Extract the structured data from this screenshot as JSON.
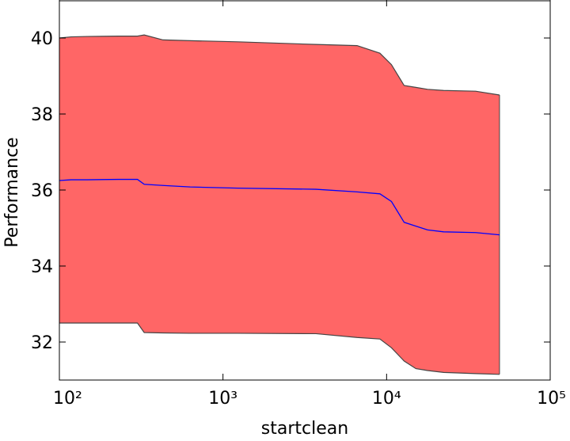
{
  "chart_data": {
    "type": "band-line",
    "xlabel": "startclean",
    "ylabel": "Performance",
    "xscale": "log",
    "x": [
      100,
      118,
      148,
      230,
      300,
      330,
      430,
      630,
      1230,
      3700,
      6600,
      9100,
      10700,
      12800,
      15100,
      17800,
      22300,
      35000,
      49000
    ],
    "line": {
      "color": "#0000ff",
      "values": [
        36.25,
        36.27,
        36.27,
        36.28,
        36.28,
        36.15,
        36.12,
        36.08,
        36.05,
        36.02,
        35.95,
        35.9,
        35.7,
        35.15,
        35.05,
        34.95,
        34.9,
        34.88,
        34.82
      ]
    },
    "band": {
      "color": "#ff6666",
      "edge_color": "#444444",
      "upper": [
        40.0,
        40.03,
        40.04,
        40.05,
        40.05,
        40.08,
        39.95,
        39.93,
        39.9,
        39.83,
        39.8,
        39.6,
        39.3,
        38.75,
        38.7,
        38.65,
        38.62,
        38.6,
        38.5
      ],
      "lower": [
        32.5,
        32.5,
        32.5,
        32.5,
        32.5,
        32.25,
        32.24,
        32.23,
        32.23,
        32.22,
        32.12,
        32.08,
        31.85,
        31.5,
        31.3,
        31.25,
        31.2,
        31.17,
        31.15
      ]
    },
    "xlim": [
      100,
      100000
    ],
    "xticks": [
      {
        "value": 100,
        "label": "10²"
      },
      {
        "value": 1000,
        "label": "10³"
      },
      {
        "value": 10000,
        "label": "10⁴"
      },
      {
        "value": 100000,
        "label": "10⁵"
      }
    ],
    "ylim": [
      31,
      41
    ],
    "yticks": [
      32,
      34,
      36,
      38,
      40
    ]
  }
}
